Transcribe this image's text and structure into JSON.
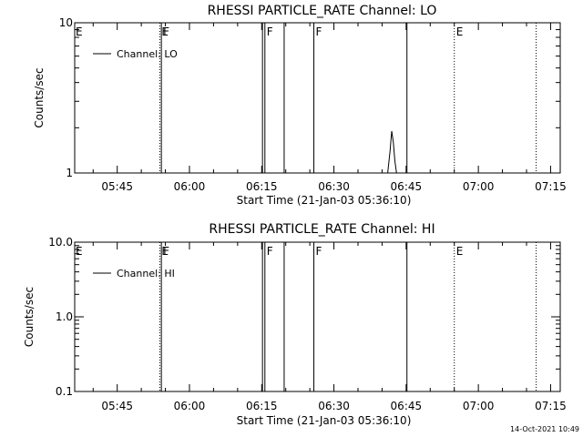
{
  "footer": {
    "timestamp": "14-Oct-2021 10:49"
  },
  "chart_data": [
    {
      "type": "line",
      "title": "RHESSI PARTICLE_RATE Channel: LO",
      "xlabel": "Start Time (21-Jan-03 05:36:10)",
      "ylabel": "Counts/sec",
      "y_scale": "log",
      "ylim": [
        1,
        10
      ],
      "y_ticks": [
        {
          "value": 1,
          "label": "1"
        },
        {
          "value": 10,
          "label": "10"
        }
      ],
      "xlim": [
        "05:36:10",
        "07:17:00"
      ],
      "x_ticks": [
        "05:45",
        "06:00",
        "06:15",
        "06:30",
        "06:45",
        "07:00",
        "07:15"
      ],
      "legend": {
        "position": "top-left",
        "entries": [
          "Channel: LO"
        ]
      },
      "series": [
        {
          "name": "Channel: LO",
          "x": [
            "06:41:10",
            "06:41:40",
            "06:42:00",
            "06:42:20",
            "06:42:40",
            "06:43:00"
          ],
          "values": [
            1.0,
            1.4,
            1.9,
            1.6,
            1.2,
            1.0
          ]
        }
      ],
      "markers": [
        {
          "time": "05:53:50",
          "style": "dotted",
          "label": "E"
        },
        {
          "time": "05:54:10",
          "style": "solid",
          "label": "F"
        },
        {
          "time": "06:15:10",
          "style": "solid",
          "label": ""
        },
        {
          "time": "06:15:40",
          "style": "solid",
          "label": "F"
        },
        {
          "time": "06:19:40",
          "style": "solid",
          "label": ""
        },
        {
          "time": "06:25:50",
          "style": "solid",
          "label": "F"
        },
        {
          "time": "06:45:10",
          "style": "solid",
          "label": ""
        },
        {
          "time": "06:55:00",
          "style": "dotted",
          "label": "E"
        },
        {
          "time": "07:12:00",
          "style": "dotted",
          "label": ""
        }
      ],
      "left_edge_label": "E"
    },
    {
      "type": "line",
      "title": "RHESSI PARTICLE_RATE Channel: HI",
      "xlabel": "Start Time (21-Jan-03 05:36:10)",
      "ylabel": "Counts/sec",
      "y_scale": "log",
      "ylim": [
        0.1,
        10
      ],
      "y_ticks": [
        {
          "value": 0.1,
          "label": "0.1"
        },
        {
          "value": 1,
          "label": "1.0"
        },
        {
          "value": 10,
          "label": "10.0"
        }
      ],
      "xlim": [
        "05:36:10",
        "07:17:00"
      ],
      "x_ticks": [
        "05:45",
        "06:00",
        "06:15",
        "06:30",
        "06:45",
        "07:00",
        "07:15"
      ],
      "legend": {
        "position": "top-left",
        "entries": [
          "Channel: HI"
        ]
      },
      "series": [
        {
          "name": "Channel: HI",
          "x": [],
          "values": []
        }
      ],
      "markers": [
        {
          "time": "05:53:50",
          "style": "dotted",
          "label": "E"
        },
        {
          "time": "05:54:10",
          "style": "solid",
          "label": "F"
        },
        {
          "time": "06:15:10",
          "style": "solid",
          "label": ""
        },
        {
          "time": "06:15:40",
          "style": "solid",
          "label": "F"
        },
        {
          "time": "06:19:40",
          "style": "solid",
          "label": ""
        },
        {
          "time": "06:25:50",
          "style": "solid",
          "label": "F"
        },
        {
          "time": "06:45:10",
          "style": "solid",
          "label": ""
        },
        {
          "time": "06:55:00",
          "style": "dotted",
          "label": "E"
        },
        {
          "time": "07:12:00",
          "style": "dotted",
          "label": ""
        }
      ],
      "left_edge_label": "E"
    }
  ]
}
